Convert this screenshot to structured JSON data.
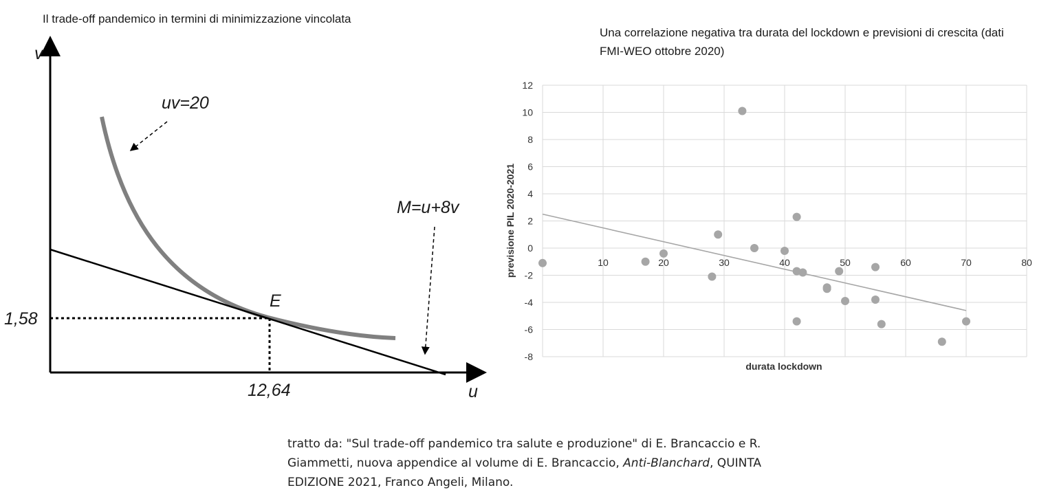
{
  "left_panel": {
    "title": "Il trade-off pandemico in termini di minimizzazione vincolata",
    "y_axis_label": "v",
    "x_axis_label": "u",
    "curve_label": "uv=20",
    "line_label": "M=u+8v",
    "point_label": "E",
    "y_value_label": "1,58",
    "x_value_label": "12,64",
    "curve_color": "#808080",
    "line_color": "#000000"
  },
  "chart_data": {
    "type": "scatter",
    "title": "Una correlazione negativa tra durata del lockdown e previsioni di crescita (dati FMI-WEO ottobre 2020)",
    "xlabel": "durata lockdown",
    "ylabel": "previsione PIL 2020-2021",
    "xlim": [
      0,
      80
    ],
    "ylim": [
      -8,
      12
    ],
    "x_ticks": [
      0,
      10,
      20,
      30,
      40,
      50,
      60,
      70,
      80
    ],
    "y_ticks": [
      12,
      10,
      8,
      6,
      4,
      2,
      0,
      -2,
      -4,
      -6,
      -8
    ],
    "grid": true,
    "marker_color": "#a6a6a6",
    "trendline_color": "#a6a6a6",
    "points": [
      {
        "x": 0,
        "y": -1.1
      },
      {
        "x": 17,
        "y": -1.0
      },
      {
        "x": 20,
        "y": -0.4
      },
      {
        "x": 28,
        "y": -2.1
      },
      {
        "x": 29,
        "y": 1.0
      },
      {
        "x": 33,
        "y": 10.1
      },
      {
        "x": 35,
        "y": 0.0
      },
      {
        "x": 40,
        "y": -0.2
      },
      {
        "x": 42,
        "y": 2.3
      },
      {
        "x": 42,
        "y": -1.7
      },
      {
        "x": 43,
        "y": -1.8
      },
      {
        "x": 42,
        "y": -5.4
      },
      {
        "x": 47,
        "y": -2.9
      },
      {
        "x": 47,
        "y": -3.0
      },
      {
        "x": 49,
        "y": -1.7
      },
      {
        "x": 50,
        "y": -3.9
      },
      {
        "x": 55,
        "y": -1.4
      },
      {
        "x": 55,
        "y": -3.8
      },
      {
        "x": 56,
        "y": -5.6
      },
      {
        "x": 66,
        "y": -6.9
      },
      {
        "x": 70,
        "y": -5.4
      }
    ],
    "trendline": {
      "x": [
        0,
        70
      ],
      "y": [
        2.5,
        -4.6
      ]
    }
  },
  "citation": {
    "prefix": "tratto da: \"Sul trade-off pandemico tra salute e produzione\" di E. Brancaccio e R. Giammetti, nuova appendice al volume di E. Brancaccio, ",
    "book_title": "Anti-Blanchard",
    "suffix": ", QUINTA EDIZIONE 2021, Franco Angeli, Milano."
  }
}
